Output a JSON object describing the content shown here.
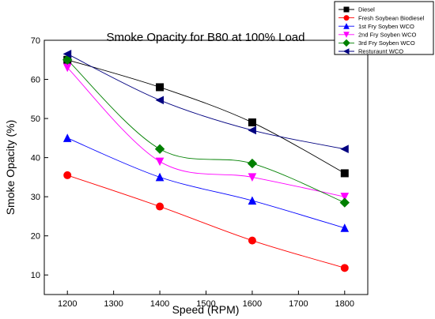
{
  "chart_data": {
    "type": "line",
    "title": "Smoke Opacity for B80 at 100% Load",
    "xlabel": "Speed (RPM)",
    "ylabel": "Smoke Opacity (%)",
    "xlim": [
      1150,
      1850
    ],
    "ylim": [
      5,
      70
    ],
    "x_ticks": [
      1200,
      1300,
      1400,
      1500,
      1600,
      1700,
      1800
    ],
    "y_ticks": [
      10,
      20,
      30,
      40,
      50,
      60,
      70
    ],
    "x": [
      1200,
      1400,
      1600,
      1800
    ],
    "grid": false,
    "legend_position": "top-right",
    "series": [
      {
        "name": "Diesel",
        "values": [
          65,
          58,
          49,
          36
        ],
        "color": "#000000",
        "marker": "square"
      },
      {
        "name": "Fresh Soybean Biodiesel",
        "values": [
          35.5,
          27.5,
          18.8,
          11.8
        ],
        "color": "#ff0000",
        "marker": "circle"
      },
      {
        "name": "1st Fry Soyben WCO",
        "values": [
          45,
          35,
          29,
          22
        ],
        "color": "#0000ff",
        "marker": "triangle-up"
      },
      {
        "name": "2nd Fry Soyben WCO",
        "values": [
          63,
          39,
          35,
          30
        ],
        "color": "#ff00ff",
        "marker": "triangle-down"
      },
      {
        "name": "3rd Fry Soyben WCO",
        "values": [
          65,
          42.2,
          38.5,
          28.5
        ],
        "color": "#008000",
        "marker": "diamond"
      },
      {
        "name": "Resturaunt WCO",
        "values": [
          66.5,
          54.7,
          47,
          42.2
        ],
        "color": "#000080",
        "marker": "triangle-left"
      }
    ]
  }
}
